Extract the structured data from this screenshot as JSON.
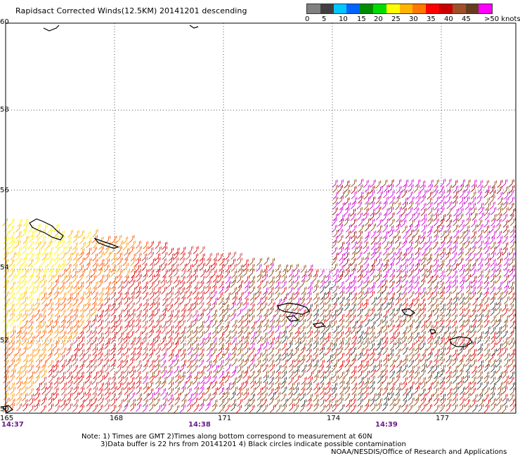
{
  "title": "Rapidsact Corrected Winds(12.5KM) 20141201 descending",
  "legend": {
    "colors": [
      "#808080",
      "#404040",
      "#00c8ff",
      "#0064ff",
      "#008c00",
      "#00dc00",
      "#ffff00",
      "#ffb400",
      "#ff7800",
      "#ff0000",
      "#c80000",
      "#a05028",
      "#643c1e",
      "#ff00ff",
      "#c800c8",
      "#8c00c8",
      "#501478"
    ],
    "labels": [
      "0",
      "5",
      "10",
      "15",
      "20",
      "25",
      "30",
      "35",
      "40",
      "45",
      ">50 knots"
    ]
  },
  "axes": {
    "lat_labels": [
      "60",
      "58",
      "56",
      "54",
      "52",
      "50"
    ],
    "lon_labels": [
      "165",
      "168",
      "171",
      "174",
      "177"
    ],
    "time_labels": [
      "14:37",
      "14:38",
      "14:39"
    ]
  },
  "notes": {
    "line1": "Note: 1) Times are GMT 2)Times along bottom correspond to measurement at 60N",
    "line2": "3)Data buffer is 22 hrs from 20141201 4) Black circles indicate possible contamination",
    "credit": "NOAA/NESDIS/Office of Research and Applications"
  }
}
